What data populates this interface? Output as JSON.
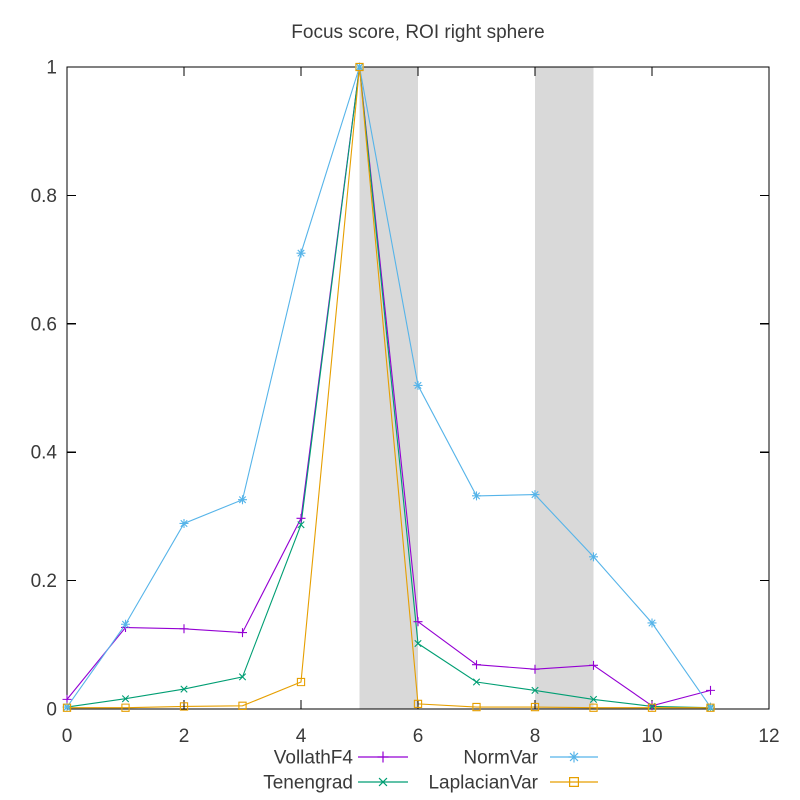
{
  "chart_data": {
    "type": "line",
    "title": "Focus score, ROI right sphere",
    "xlabel": "",
    "ylabel": "",
    "xlim": [
      0,
      12
    ],
    "ylim": [
      0,
      1
    ],
    "grid": false,
    "legend_position": "below-plot, two columns",
    "xtick_labels": [
      "0",
      "2",
      "4",
      "6",
      "8",
      "10",
      "12"
    ],
    "xtick_values": [
      0,
      2,
      4,
      6,
      8,
      10,
      12
    ],
    "ytick_labels": [
      "0",
      "0.2",
      "0.4",
      "0.6",
      "0.8",
      "1"
    ],
    "ytick_values": [
      0,
      0.2,
      0.4,
      0.6,
      0.8,
      1
    ],
    "x": [
      0,
      1,
      2,
      3,
      4,
      5,
      6,
      7,
      8,
      9,
      10,
      11
    ],
    "series": [
      {
        "name": "VollathF4",
        "color": "#9400d3",
        "marker": "plus-marker-icon",
        "values": [
          0.015,
          0.127,
          0.125,
          0.119,
          0.297,
          1.0,
          0.136,
          0.069,
          0.062,
          0.068,
          0.005,
          0.029
        ]
      },
      {
        "name": "Tenengrad",
        "color": "#009e73",
        "marker": "cross-marker-icon",
        "values": [
          0.003,
          0.016,
          0.031,
          0.05,
          0.287,
          1.0,
          0.102,
          0.042,
          0.029,
          0.015,
          0.004,
          0.002
        ]
      },
      {
        "name": "NormVar",
        "color": "#56b4e9",
        "marker": "asterisk-marker-icon",
        "values": [
          0.003,
          0.132,
          0.289,
          0.326,
          0.71,
          1.0,
          0.504,
          0.332,
          0.334,
          0.237,
          0.134,
          0.003
        ]
      },
      {
        "name": "LaplacianVar",
        "color": "#e69f00",
        "marker": "open-square-marker-icon",
        "values": [
          0.002,
          0.002,
          0.004,
          0.005,
          0.042,
          1.0,
          0.008,
          0.003,
          0.003,
          0.002,
          0.002,
          0.002
        ]
      }
    ],
    "highlight_bands": [
      {
        "from": 5,
        "to": 6
      },
      {
        "from": 8,
        "to": 9
      }
    ],
    "band_color": "#d9d9d9",
    "border_color": "#000000",
    "text_color": "#3a3a3a",
    "legend_rows": [
      [
        "VollathF4",
        "NormVar"
      ],
      [
        "Tenengrad",
        "LaplacianVar"
      ]
    ]
  }
}
